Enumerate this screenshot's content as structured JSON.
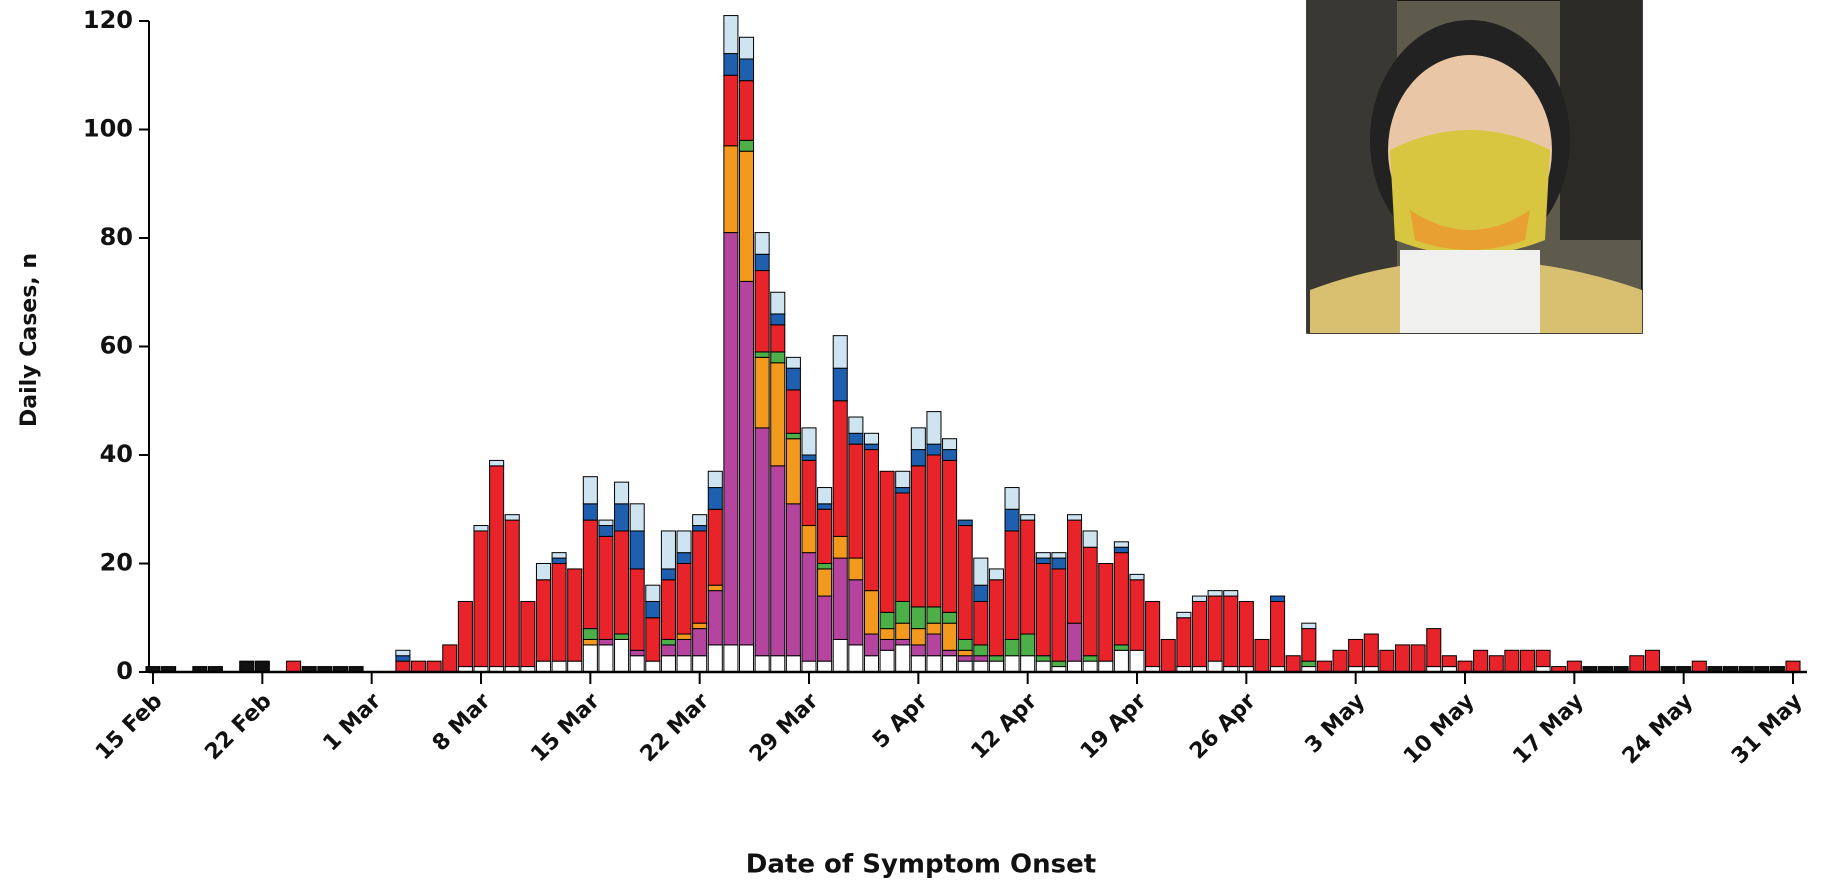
{
  "chart_data": {
    "type": "bar",
    "stacked": true,
    "x_label": "Date of Symptom Onset",
    "y_label": "Daily Cases, n",
    "categories": [
      "15 Feb",
      null,
      null,
      null,
      null,
      null,
      null,
      "22 Feb",
      null,
      null,
      null,
      null,
      null,
      null,
      "1 Mar",
      null,
      null,
      null,
      null,
      null,
      null,
      "8 Mar",
      null,
      null,
      null,
      null,
      null,
      null,
      "15 Mar",
      null,
      null,
      null,
      null,
      null,
      null,
      "22 Mar",
      null,
      null,
      null,
      null,
      null,
      null,
      "29 Mar",
      null,
      null,
      null,
      null,
      null,
      null,
      "5 Apr",
      null,
      null,
      null,
      null,
      null,
      null,
      "12 Apr",
      null,
      null,
      null,
      null,
      null,
      null,
      "19 Apr",
      null,
      null,
      null,
      null,
      null,
      null,
      "26 Apr",
      null,
      null,
      null,
      null,
      null,
      null,
      "3 May",
      null,
      null,
      null,
      null,
      null,
      null,
      "10 May",
      null,
      null,
      null,
      null,
      null,
      null,
      "17 May",
      null,
      null,
      null,
      null,
      null,
      null,
      "24 May",
      null,
      null,
      null,
      null,
      null,
      null,
      "31 May"
    ],
    "series": [
      {
        "color": "#111111",
        "values": [
          1,
          1,
          0,
          1,
          1,
          0,
          2,
          2,
          0,
          0,
          1,
          1,
          1,
          1,
          0,
          0,
          0,
          0,
          0,
          0,
          0,
          0,
          0,
          0,
          0,
          0,
          0,
          0,
          0,
          0,
          0,
          0,
          0,
          0,
          0,
          0,
          0,
          0,
          0,
          0,
          0,
          0,
          0,
          0,
          0,
          0,
          0,
          0,
          0,
          0,
          0,
          0,
          0,
          0,
          0,
          0,
          0,
          0,
          0,
          0,
          0,
          0,
          0,
          0,
          0,
          0,
          0,
          0,
          0,
          0,
          0,
          0,
          0,
          0,
          0,
          0,
          0,
          0,
          0,
          0,
          0,
          0,
          0,
          0,
          0,
          0,
          0,
          0,
          0,
          0,
          0,
          0,
          1,
          1,
          1,
          0,
          0,
          1,
          1,
          0,
          1,
          1,
          1,
          1,
          1,
          0
        ]
      },
      {
        "color": "#ffffff",
        "values": [
          0,
          0,
          0,
          0,
          0,
          0,
          0,
          0,
          0,
          0,
          0,
          0,
          0,
          0,
          0,
          0,
          0,
          0,
          0,
          0,
          1,
          1,
          1,
          1,
          1,
          2,
          2,
          2,
          5,
          5,
          6,
          3,
          2,
          3,
          3,
          3,
          5,
          5,
          5,
          3,
          3,
          3,
          2,
          2,
          6,
          5,
          3,
          4,
          5,
          3,
          3,
          3,
          2,
          2,
          2,
          3,
          3,
          2,
          1,
          2,
          2,
          2,
          4,
          4,
          1,
          0,
          1,
          1,
          2,
          1,
          1,
          0,
          1,
          0,
          1,
          0,
          0,
          1,
          1,
          0,
          0,
          0,
          1,
          1,
          0,
          0,
          0,
          0,
          0,
          1,
          0,
          0,
          0,
          0,
          0,
          0,
          0,
          0,
          0,
          0,
          0,
          0,
          0,
          0,
          0,
          0
        ]
      },
      {
        "color": "#b5449f",
        "values": [
          0,
          0,
          0,
          0,
          0,
          0,
          0,
          0,
          0,
          0,
          0,
          0,
          0,
          0,
          0,
          0,
          0,
          0,
          0,
          0,
          0,
          0,
          0,
          0,
          0,
          0,
          0,
          0,
          0,
          1,
          0,
          1,
          0,
          2,
          3,
          5,
          10,
          76,
          67,
          42,
          35,
          28,
          20,
          12,
          15,
          12,
          4,
          2,
          1,
          2,
          4,
          1,
          1,
          1,
          0,
          0,
          0,
          0,
          0,
          7,
          0,
          0,
          0,
          0,
          0,
          0,
          0,
          0,
          0,
          0,
          0,
          0,
          0,
          0,
          0,
          0,
          0,
          0,
          0,
          0,
          0,
          0,
          0,
          0,
          0,
          0,
          0,
          0,
          0,
          0,
          0,
          0,
          0,
          0,
          0,
          0,
          0,
          0,
          0,
          0,
          0,
          0,
          0,
          0,
          0,
          0
        ]
      },
      {
        "color": "#f39a1e",
        "values": [
          0,
          0,
          0,
          0,
          0,
          0,
          0,
          0,
          0,
          0,
          0,
          0,
          0,
          0,
          0,
          0,
          0,
          0,
          0,
          0,
          0,
          0,
          0,
          0,
          0,
          0,
          0,
          0,
          1,
          0,
          0,
          0,
          0,
          0,
          1,
          1,
          1,
          16,
          24,
          13,
          19,
          12,
          5,
          5,
          4,
          4,
          8,
          2,
          3,
          3,
          2,
          5,
          1,
          0,
          0,
          0,
          0,
          0,
          0,
          0,
          0,
          0,
          0,
          0,
          0,
          0,
          0,
          0,
          0,
          0,
          0,
          0,
          0,
          0,
          0,
          0,
          0,
          0,
          0,
          0,
          0,
          0,
          0,
          0,
          0,
          0,
          0,
          0,
          0,
          0,
          0,
          0,
          0,
          0,
          0,
          0,
          0,
          0,
          0,
          0,
          0,
          0,
          0,
          0,
          0,
          0
        ]
      },
      {
        "color": "#4caf47",
        "values": [
          0,
          0,
          0,
          0,
          0,
          0,
          0,
          0,
          0,
          0,
          0,
          0,
          0,
          0,
          0,
          0,
          0,
          0,
          0,
          0,
          0,
          0,
          0,
          0,
          0,
          0,
          0,
          0,
          2,
          0,
          1,
          0,
          0,
          1,
          0,
          0,
          0,
          0,
          2,
          1,
          2,
          1,
          0,
          1,
          0,
          0,
          0,
          3,
          4,
          4,
          3,
          2,
          2,
          2,
          1,
          3,
          4,
          1,
          1,
          0,
          1,
          0,
          1,
          0,
          0,
          0,
          0,
          0,
          0,
          0,
          0,
          0,
          0,
          0,
          1,
          0,
          0,
          0,
          0,
          0,
          0,
          0,
          0,
          0,
          0,
          0,
          0,
          0,
          0,
          0,
          0,
          0,
          0,
          0,
          0,
          0,
          0,
          0,
          0,
          0,
          0,
          0,
          0,
          0,
          0,
          0
        ]
      },
      {
        "color": "#e8232a",
        "values": [
          0,
          0,
          0,
          0,
          0,
          0,
          0,
          0,
          0,
          2,
          0,
          0,
          0,
          0,
          0,
          0,
          2,
          2,
          2,
          5,
          12,
          25,
          37,
          27,
          12,
          15,
          18,
          17,
          20,
          19,
          19,
          15,
          8,
          11,
          13,
          17,
          14,
          13,
          11,
          15,
          5,
          8,
          12,
          10,
          25,
          21,
          26,
          26,
          20,
          26,
          28,
          28,
          21,
          8,
          14,
          20,
          21,
          17,
          17,
          19,
          20,
          18,
          17,
          13,
          12,
          6,
          9,
          12,
          12,
          13,
          12,
          6,
          12,
          3,
          6,
          2,
          4,
          5,
          6,
          4,
          5,
          5,
          7,
          2,
          2,
          4,
          3,
          4,
          4,
          3,
          1,
          2,
          0,
          0,
          0,
          3,
          4,
          0,
          0,
          2,
          0,
          0,
          0,
          0,
          0,
          2
        ]
      },
      {
        "color": "#1f5fb0",
        "values": [
          0,
          0,
          0,
          0,
          0,
          0,
          0,
          0,
          0,
          0,
          0,
          0,
          0,
          0,
          0,
          0,
          1,
          0,
          0,
          0,
          0,
          0,
          0,
          0,
          0,
          0,
          1,
          0,
          3,
          2,
          5,
          7,
          3,
          2,
          2,
          1,
          4,
          4,
          4,
          3,
          2,
          4,
          1,
          1,
          6,
          2,
          1,
          0,
          1,
          3,
          2,
          2,
          1,
          3,
          0,
          4,
          0,
          1,
          2,
          0,
          0,
          0,
          1,
          0,
          0,
          0,
          0,
          0,
          0,
          0,
          0,
          0,
          1,
          0,
          0,
          0,
          0,
          0,
          0,
          0,
          0,
          0,
          0,
          0,
          0,
          0,
          0,
          0,
          0,
          0,
          0,
          0,
          0,
          0,
          0,
          0,
          0,
          0,
          0,
          0,
          0,
          0,
          0,
          0,
          0,
          0
        ]
      },
      {
        "color": "#cfe4f1",
        "values": [
          0,
          0,
          0,
          0,
          0,
          0,
          0,
          0,
          0,
          0,
          0,
          0,
          0,
          0,
          0,
          0,
          1,
          0,
          0,
          0,
          0,
          1,
          1,
          1,
          0,
          3,
          1,
          0,
          5,
          1,
          4,
          5,
          3,
          7,
          4,
          2,
          3,
          7,
          4,
          4,
          4,
          2,
          5,
          3,
          6,
          3,
          2,
          0,
          3,
          4,
          6,
          2,
          0,
          5,
          2,
          4,
          1,
          1,
          1,
          1,
          3,
          0,
          1,
          1,
          0,
          0,
          1,
          1,
          1,
          1,
          0,
          0,
          0,
          0,
          1,
          0,
          0,
          0,
          0,
          0,
          0,
          0,
          0,
          0,
          0,
          0,
          0,
          0,
          0,
          0,
          0,
          0,
          0,
          0,
          0,
          0,
          0,
          0,
          0,
          0,
          0,
          0,
          0,
          0,
          0,
          0
        ]
      }
    ],
    "ylim": [
      0,
      120
    ],
    "yticks": [
      0,
      20,
      40,
      60,
      80,
      100,
      120
    ]
  }
}
